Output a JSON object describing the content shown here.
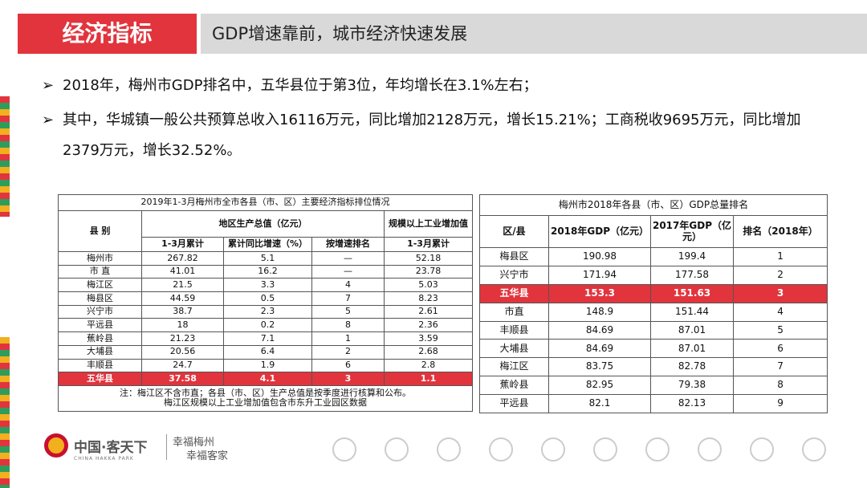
{
  "header": {
    "title": "经济指标",
    "subtitle": "GDP增速靠前，城市经济快速发展"
  },
  "bullets": [
    "2018年，梅州市GDP排名中，五华县位于第3位，年均增长在3.1%左右；",
    "其中，华城镇一般公共预算总收入16116万元，同比增加2128万元，增长15.21%；工商税收9695万元，同比增加2379万元，增长32.52%。"
  ],
  "table1": {
    "title": "2019年1-3月梅州市全市各县（市、区）主要经济指标排位情况",
    "head": {
      "region": "县 别",
      "gdp": "地区生产总值（亿元）",
      "industry": "规模以上工业增加值",
      "cumulative": "1-3月累计",
      "growth": "累计同比增速（%）",
      "rank": "按增速排名",
      "industry_cumulative": "1-3月累计"
    },
    "rows": [
      [
        "梅州市",
        "267.82",
        "5.1",
        "—",
        "52.18"
      ],
      [
        "市 直",
        "41.01",
        "16.2",
        "—",
        "23.78"
      ],
      [
        "梅江区",
        "21.5",
        "3.3",
        "4",
        "5.03"
      ],
      [
        "梅县区",
        "44.59",
        "0.5",
        "7",
        "8.23"
      ],
      [
        "兴宁市",
        "38.7",
        "2.3",
        "5",
        "2.61"
      ],
      [
        "平远县",
        "18",
        "0.2",
        "8",
        "2.36"
      ],
      [
        "蕉岭县",
        "21.23",
        "7.1",
        "1",
        "3.59"
      ],
      [
        "大埔县",
        "20.56",
        "6.4",
        "2",
        "2.68"
      ],
      [
        "丰顺县",
        "24.7",
        "1.9",
        "6",
        "2.8"
      ],
      [
        "五华县",
        "37.58",
        "4.1",
        "3",
        "1.1"
      ]
    ],
    "notes": [
      "注：梅江区不含市直；各县（市、区）生产总值是按季度进行核算和公布。",
      "梅江区规模以上工业增加值包含市东升工业园区数据"
    ]
  },
  "table2": {
    "title": "梅州市2018年各县（市、区）GDP总量排名",
    "head": [
      "区/县",
      "2018年GDP（亿元）",
      "2017年GDP（亿元）",
      "排名（2018年）"
    ],
    "rows": [
      [
        "梅县区",
        "190.98",
        "199.4",
        "1"
      ],
      [
        "兴宁市",
        "171.94",
        "177.58",
        "2"
      ],
      [
        "五华县",
        "153.3",
        "151.63",
        "3"
      ],
      [
        "市直",
        "148.9",
        "151.44",
        "4"
      ],
      [
        "丰顺县",
        "84.69",
        "87.01",
        "5"
      ],
      [
        "大埔县",
        "84.69",
        "87.01",
        "6"
      ],
      [
        "梅江区",
        "83.75",
        "82.78",
        "7"
      ],
      [
        "蕉岭县",
        "82.95",
        "79.38",
        "8"
      ],
      [
        "平远县",
        "82.1",
        "82.13",
        "9"
      ]
    ]
  },
  "footer": {
    "brand": "中国·客天下",
    "brand_en": "CHINA HAKKA PARK",
    "slogan1": "幸福梅州",
    "slogan2": "幸福客家"
  }
}
